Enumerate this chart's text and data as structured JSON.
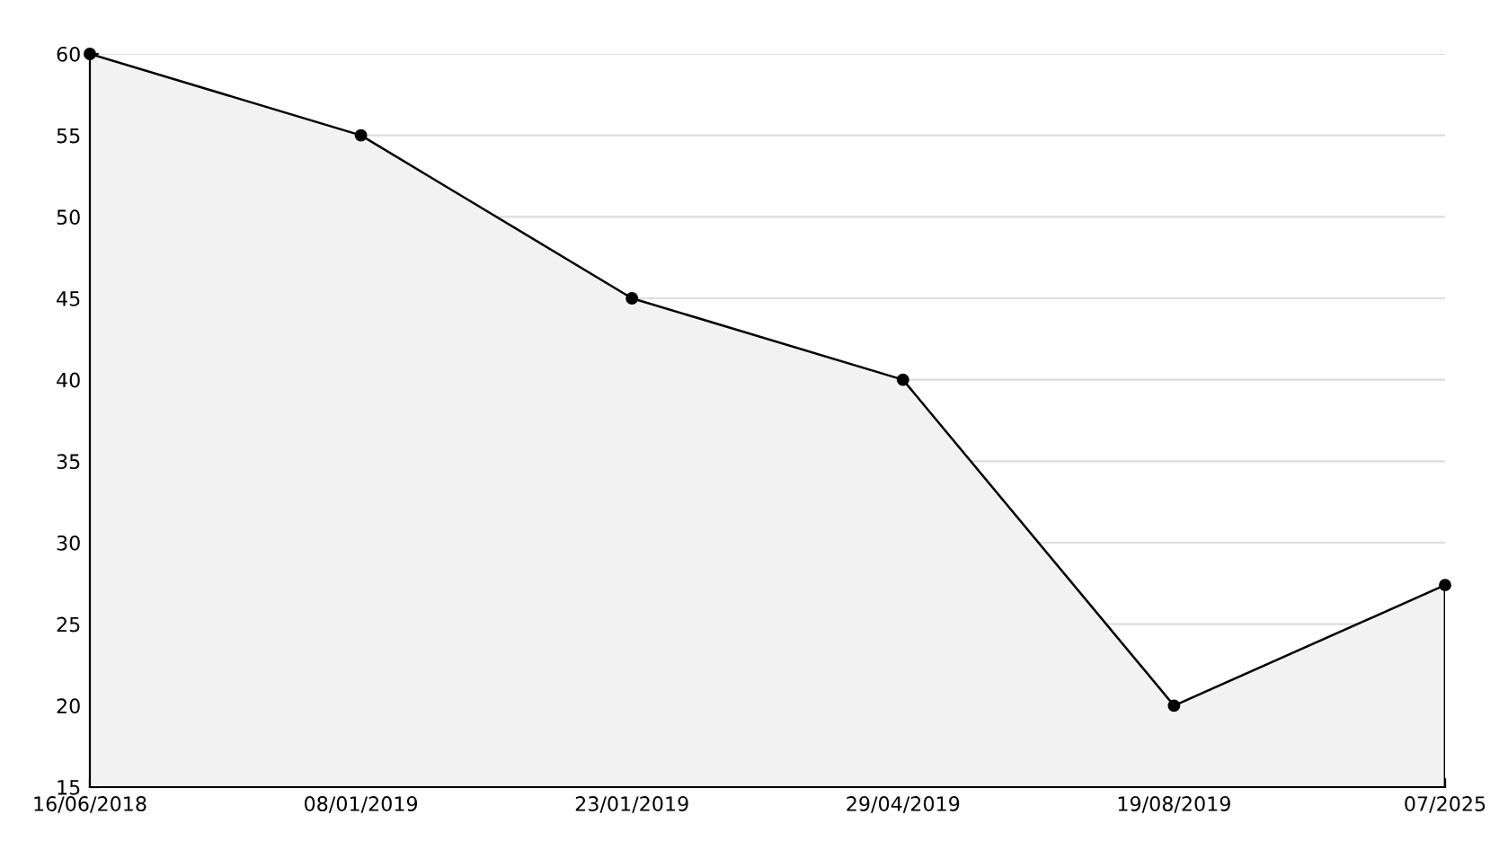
{
  "chart_data": {
    "type": "area",
    "categories": [
      "16/06/2018",
      "08/01/2019",
      "23/01/2019",
      "29/04/2019",
      "19/08/2019",
      "07/2025"
    ],
    "series": [
      {
        "color": "#000000",
        "values": [
          60,
          55,
          45,
          40,
          20,
          27.4
        ]
      }
    ],
    "ylim": [
      15,
      60
    ],
    "yticks": [
      15,
      20,
      25,
      30,
      35,
      40,
      45,
      50,
      55,
      60
    ],
    "grid": "y",
    "marker": "circle",
    "line_style": "solid"
  }
}
